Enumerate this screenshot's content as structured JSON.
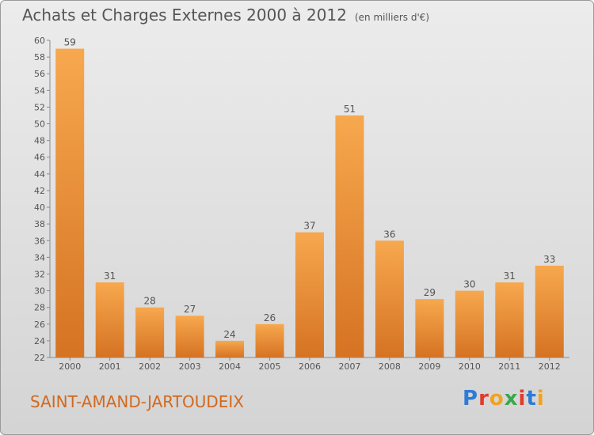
{
  "header": {
    "title": "Achats et Charges Externes 2000 à 2012",
    "unit": "(en milliers d'€)"
  },
  "footer": {
    "commune": "SAINT-AMAND-JARTOUDEIX",
    "logo": "Proxiti"
  },
  "colors": {
    "bar_light": "#f7a84e",
    "bar_dark": "#d57323",
    "text": "#555555",
    "commune": "#d2691e"
  },
  "chart_data": {
    "type": "bar",
    "title": "Achats et Charges Externes 2000 à 2012",
    "categories": [
      "2000",
      "2001",
      "2002",
      "2003",
      "2004",
      "2005",
      "2006",
      "2007",
      "2008",
      "2009",
      "2010",
      "2011",
      "2012"
    ],
    "values": [
      59,
      31,
      28,
      27,
      24,
      26,
      37,
      51,
      36,
      29,
      30,
      31,
      33
    ],
    "ylim": [
      22,
      60
    ],
    "yticks": [
      22,
      24,
      26,
      28,
      30,
      32,
      34,
      36,
      38,
      40,
      42,
      44,
      46,
      48,
      50,
      52,
      54,
      56,
      58,
      60
    ],
    "grid": false,
    "data_labels": true
  }
}
